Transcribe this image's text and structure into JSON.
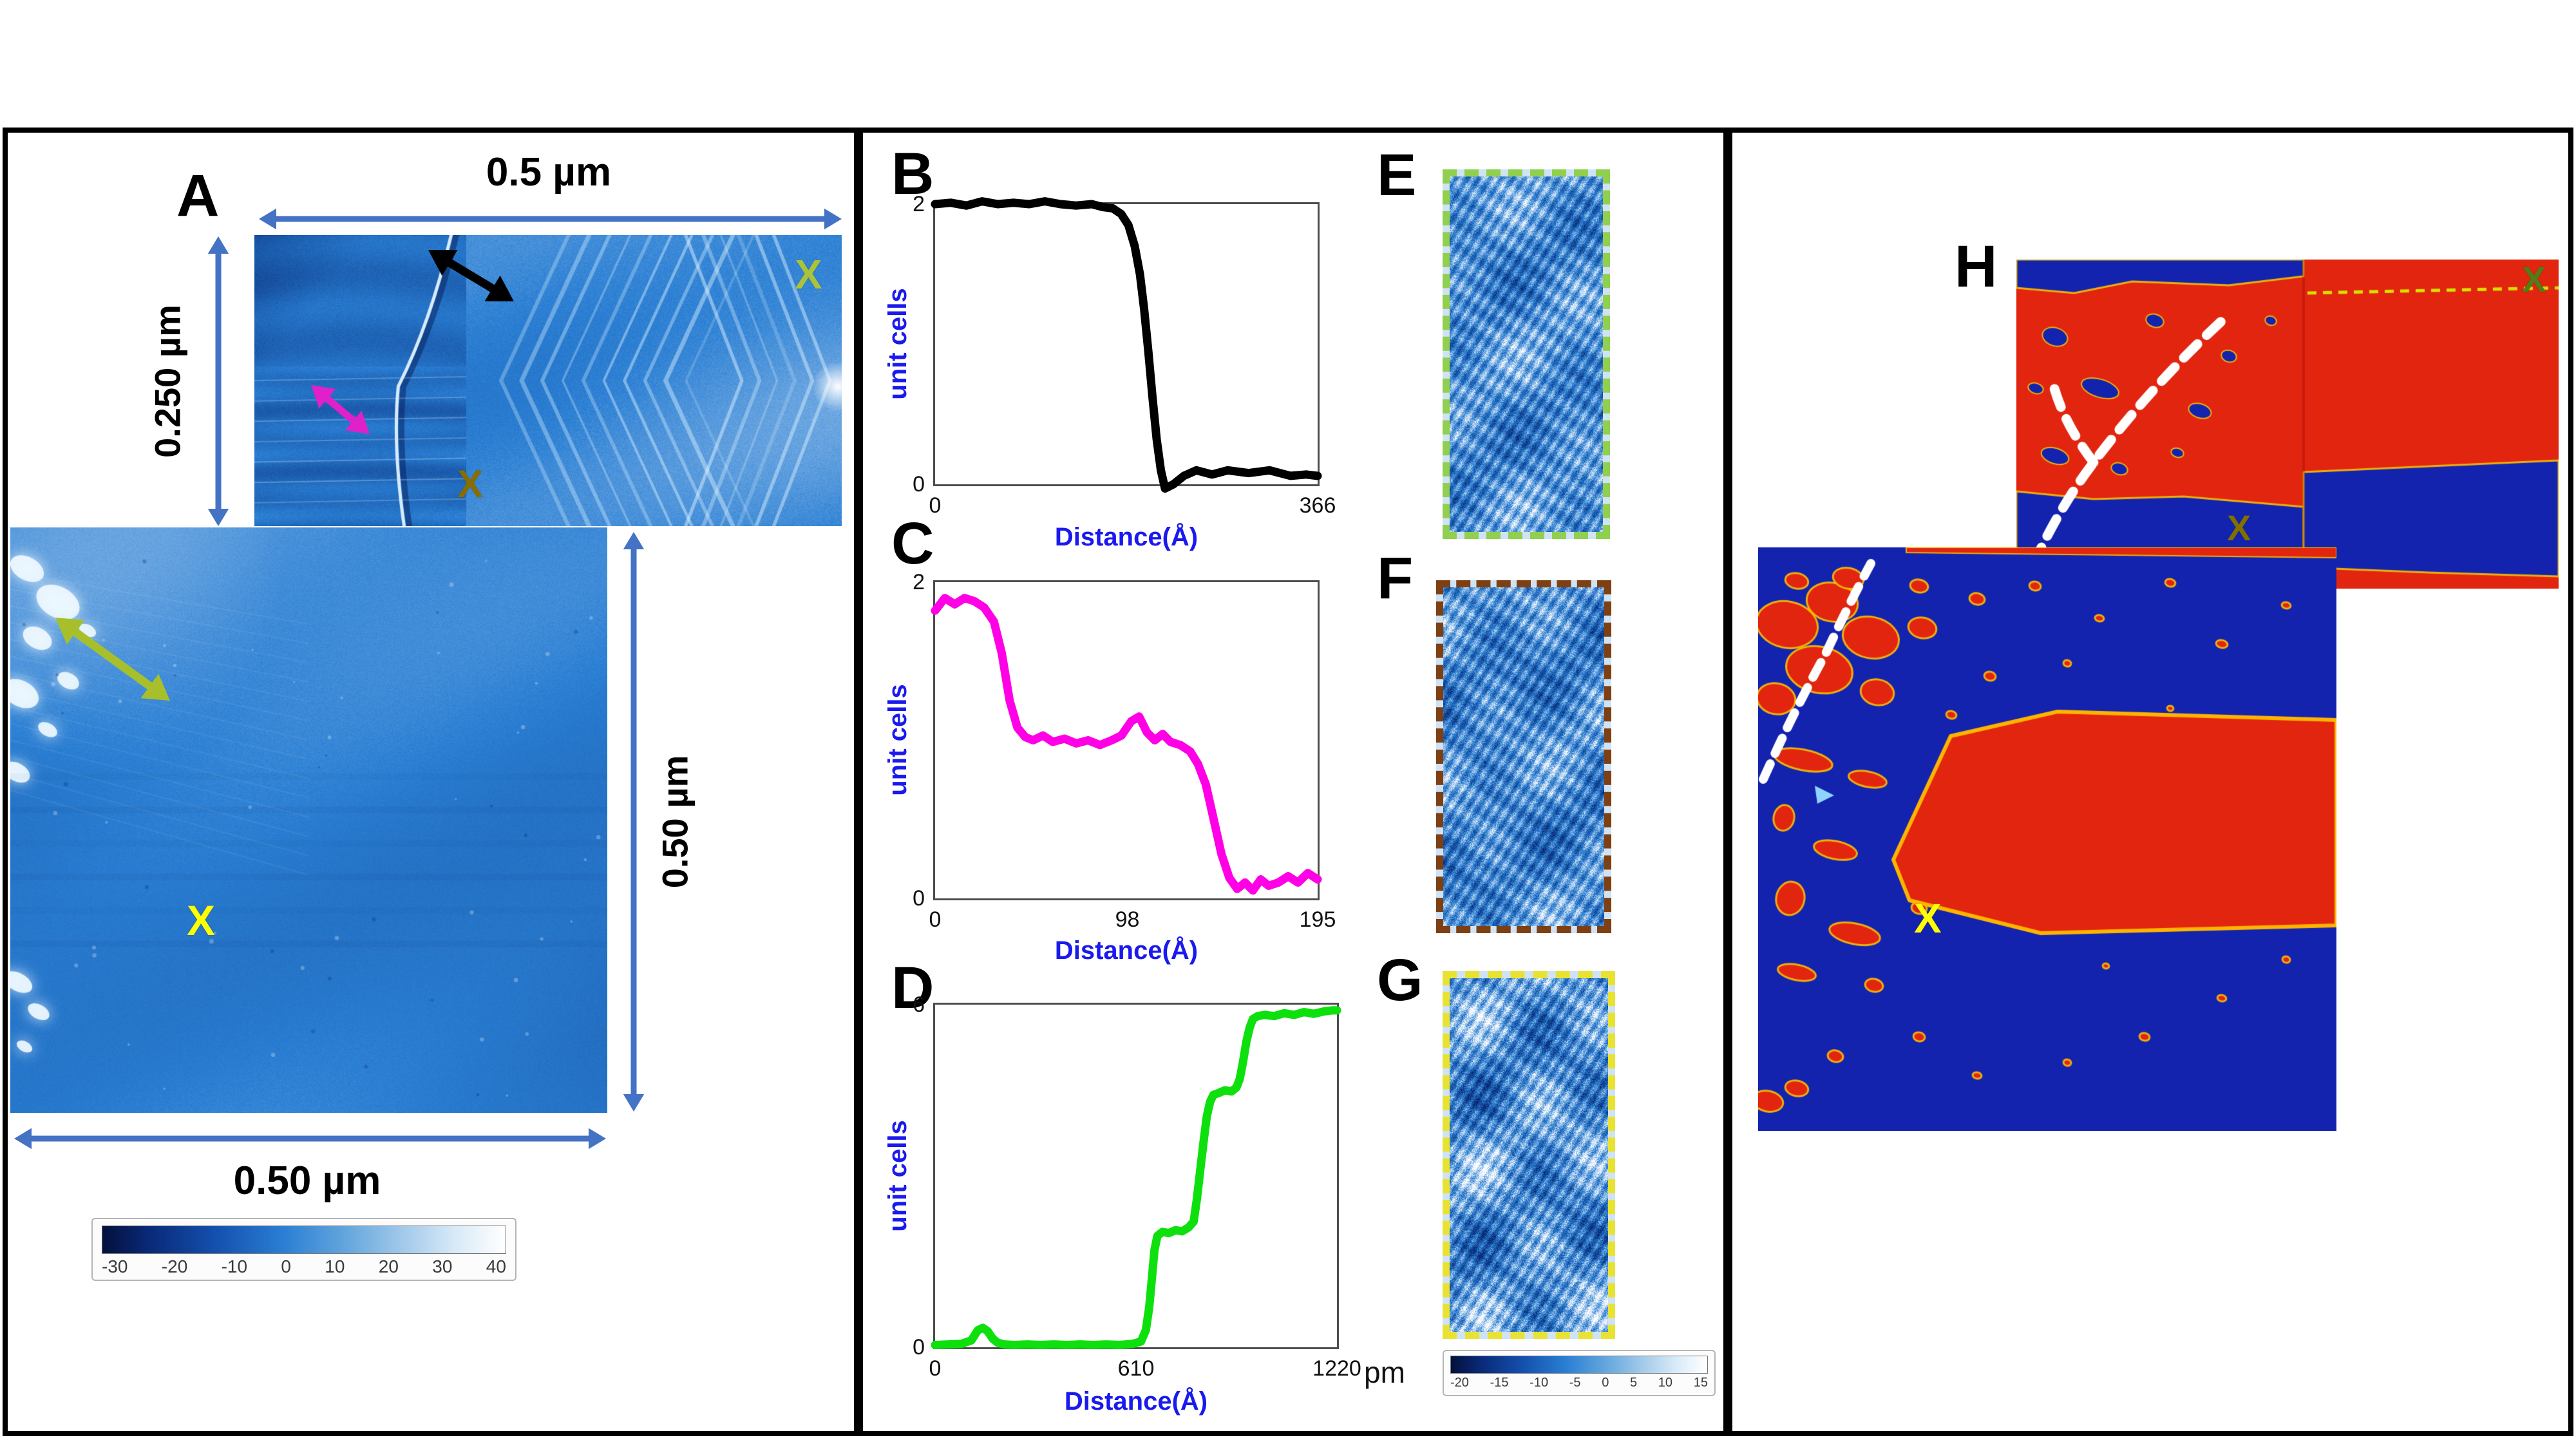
{
  "figure": {
    "colors": {
      "scale_arrow": "#4472c4",
      "profile_b_arrow": "#000000",
      "profile_c_arrow": "#e020c8",
      "profile_d_arrow": "#a8bf2c",
      "domain_red": "#e2250f",
      "domain_blue": "#1423ae",
      "border_e": "#90d04e",
      "border_f": "#7e4012",
      "border_g": "#e8e332"
    },
    "panelA": {
      "label": "A",
      "scale_top": "0.5 µm",
      "scale_left": "0.250 µm",
      "scale_right": "0.50 µm",
      "scale_bottom": "0.50 µm",
      "colorbar_ticks": [
        "-30",
        "-20",
        "-10",
        "0",
        "10",
        "20",
        "30",
        "40"
      ],
      "markers": [
        {
          "text": "X",
          "color": "#a9c43b"
        },
        {
          "text": "X",
          "color": "#8a6d00"
        },
        {
          "text": "X",
          "color": "#ffff00"
        }
      ]
    },
    "panelB": {
      "label": "B"
    },
    "panelC": {
      "label": "C"
    },
    "panelD": {
      "label": "D"
    },
    "panelE": {
      "label": "E"
    },
    "panelF": {
      "label": "F"
    },
    "panelG": {
      "label": "G"
    },
    "panelH": {
      "label": "H",
      "markers": [
        {
          "text": "X",
          "color": "#4f7d18"
        },
        {
          "text": "X",
          "color": "#7f7000"
        },
        {
          "text": "X",
          "color": "#ffff00"
        }
      ]
    },
    "pm_colorbar": {
      "unit": "pm",
      "ticks": [
        "-20",
        "-15",
        "-10",
        "-5",
        "0",
        "5",
        "10",
        "15"
      ]
    }
  },
  "chart_data": [
    {
      "id": "B",
      "type": "line",
      "color": "#000000",
      "xlabel": "Distance(Å)",
      "ylabel": "unit cells",
      "xlim": [
        0,
        366
      ],
      "ylim": [
        0,
        2
      ],
      "xticks": [
        0,
        366
      ],
      "yticks": [
        0,
        2
      ],
      "x": [
        0,
        15,
        30,
        45,
        60,
        75,
        90,
        105,
        120,
        135,
        150,
        160,
        170,
        178,
        185,
        191,
        196,
        200,
        204,
        208,
        212,
        216,
        220,
        228,
        238,
        250,
        265,
        280,
        300,
        320,
        340,
        355,
        366
      ],
      "y": [
        2.0,
        2.01,
        1.99,
        2.02,
        2.0,
        2.01,
        2.0,
        2.02,
        2.0,
        1.99,
        2.0,
        1.98,
        1.97,
        1.93,
        1.85,
        1.7,
        1.5,
        1.25,
        0.95,
        0.62,
        0.32,
        0.1,
        -0.03,
        0.0,
        0.06,
        0.1,
        0.07,
        0.1,
        0.08,
        0.1,
        0.06,
        0.07,
        0.06
      ]
    },
    {
      "id": "C",
      "type": "line",
      "color": "#ff00e6",
      "xlabel": "Distance(Å)",
      "ylabel": "unit cells",
      "xlim": [
        0,
        195
      ],
      "ylim": [
        0,
        2
      ],
      "xticks": [
        0,
        98,
        195
      ],
      "yticks": [
        0,
        2
      ],
      "x": [
        0,
        5,
        10,
        15,
        20,
        25,
        30,
        34,
        38,
        42,
        46,
        50,
        55,
        60,
        66,
        72,
        78,
        84,
        90,
        95,
        100,
        104,
        108,
        112,
        116,
        120,
        125,
        130,
        134,
        138,
        142,
        146,
        150,
        154,
        158,
        162,
        166,
        170,
        175,
        180,
        185,
        190,
        195
      ],
      "y": [
        1.82,
        1.9,
        1.86,
        1.9,
        1.88,
        1.84,
        1.75,
        1.55,
        1.25,
        1.08,
        1.02,
        1.0,
        1.03,
        0.99,
        1.01,
        0.98,
        1.0,
        0.97,
        1.0,
        1.03,
        1.12,
        1.15,
        1.05,
        1.0,
        1.04,
        0.99,
        0.97,
        0.93,
        0.85,
        0.72,
        0.5,
        0.28,
        0.13,
        0.06,
        0.1,
        0.05,
        0.12,
        0.08,
        0.1,
        0.14,
        0.1,
        0.16,
        0.12
      ]
    },
    {
      "id": "D",
      "type": "line",
      "color": "#0ee00e",
      "xlabel": "Distance(Å)",
      "ylabel": "unit cells",
      "xlim": [
        0,
        1220
      ],
      "ylim": [
        0,
        6
      ],
      "xticks": [
        0,
        610,
        1220
      ],
      "yticks": [
        0,
        6
      ],
      "x": [
        0,
        40,
        80,
        110,
        130,
        145,
        160,
        175,
        190,
        210,
        240,
        280,
        320,
        360,
        400,
        440,
        480,
        520,
        560,
        600,
        625,
        640,
        650,
        658,
        666,
        675,
        690,
        710,
        730,
        750,
        770,
        785,
        795,
        805,
        815,
        825,
        835,
        845,
        860,
        880,
        900,
        915,
        925,
        935,
        945,
        955,
        965,
        980,
        1000,
        1030,
        1060,
        1090,
        1120,
        1150,
        1180,
        1205,
        1220
      ],
      "y": [
        0.04,
        0.05,
        0.06,
        0.12,
        0.3,
        0.34,
        0.28,
        0.15,
        0.08,
        0.05,
        0.04,
        0.05,
        0.04,
        0.05,
        0.04,
        0.05,
        0.04,
        0.05,
        0.04,
        0.06,
        0.1,
        0.3,
        0.7,
        1.2,
        1.7,
        1.95,
        2.02,
        2.0,
        2.05,
        2.03,
        2.1,
        2.2,
        2.6,
        3.1,
        3.6,
        4.05,
        4.3,
        4.42,
        4.45,
        4.5,
        4.48,
        4.55,
        4.7,
        5.0,
        5.35,
        5.6,
        5.75,
        5.8,
        5.82,
        5.8,
        5.85,
        5.82,
        5.87,
        5.84,
        5.88,
        5.9,
        5.9
      ]
    }
  ]
}
